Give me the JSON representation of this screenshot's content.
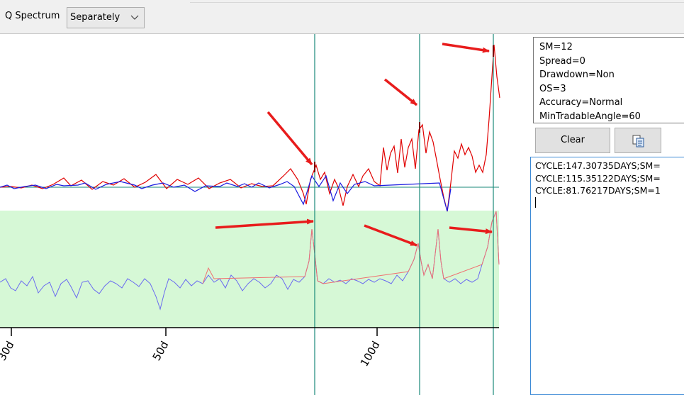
{
  "toolbar": {
    "spectrum_label": "Q Spectrum",
    "mode_value": "Separately",
    "mode_icon": "chevron-down-icon"
  },
  "chart": {
    "axis_ticks": [
      "30d",
      "50d",
      "100d"
    ],
    "colors": {
      "upper_series": "#e00000",
      "upper_dip": "#1a1ae0",
      "lower_high": "#f07070",
      "lower_low": "#6a6af0",
      "lower_bg": "#d6f8d6",
      "markers": "#1a8a7a",
      "arrows": "#e81c1c"
    }
  },
  "params": [
    "SM=12",
    "Spread=0",
    "Drawdown=Non",
    "OS=3",
    "Accuracy=Normal",
    "MinTradableAngle=60"
  ],
  "buttons": {
    "clear": "Clear",
    "copy_icon": "copy-icon"
  },
  "output_lines": [
    "CYCLE:147.30735DAYS;SM=",
    "CYCLE:115.35122DAYS;SM=",
    "CYCLE:81.76217DAYS;SM=1"
  ]
}
